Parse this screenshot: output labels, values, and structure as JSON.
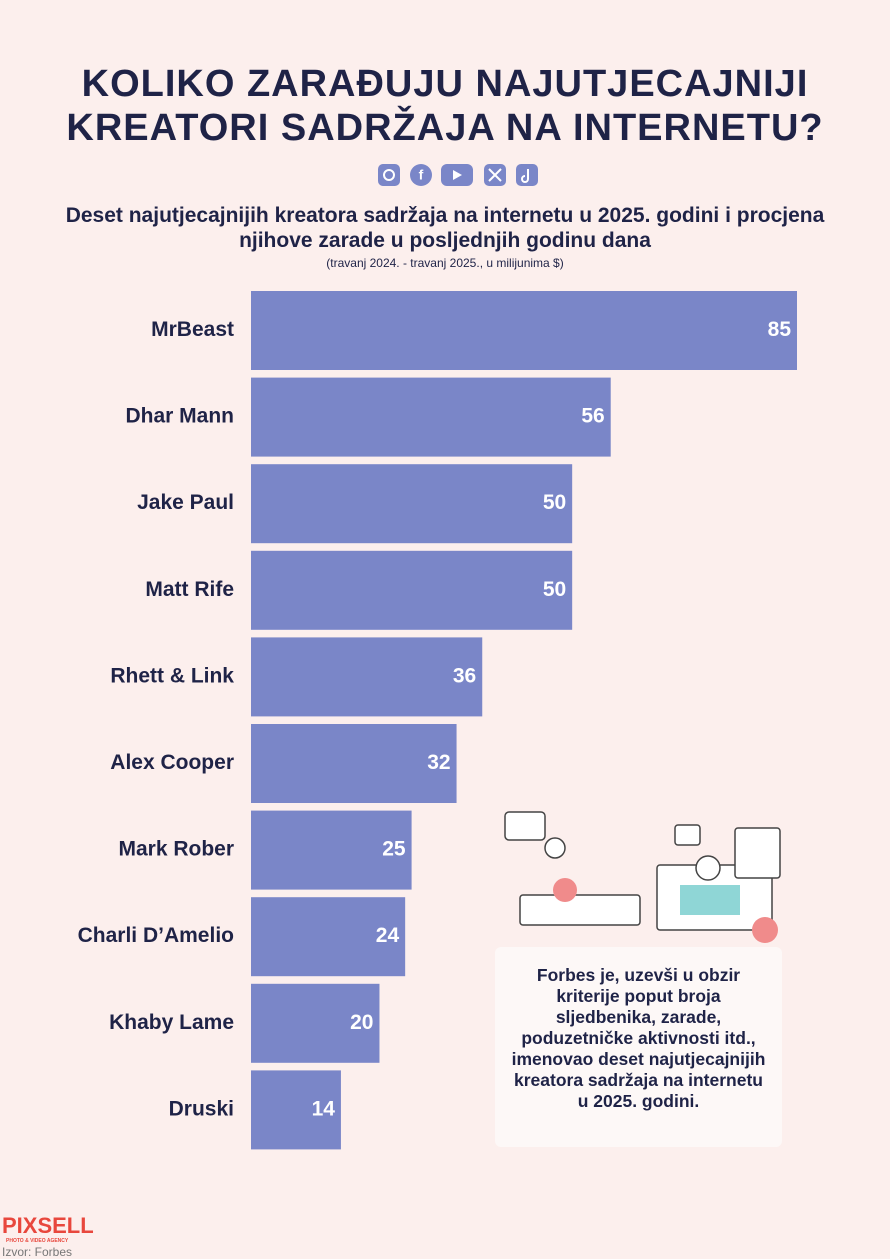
{
  "chart_data": {
    "type": "bar",
    "title": "KOLIKO ZARAĐUJU NAJUTJECAJNIJI KREATORI SADRŽAJA NA INTERNETU?",
    "subtitle": "Deset najutjecajnijih kreatora sadržaja na internetu u 2025. godini i procjena njihove zarade u posljednjih godinu dana",
    "note": "(travanj 2024. - travanj 2025., u milijunima $)",
    "categories": [
      "MrBeast",
      "Dhar Mann",
      "Jake Paul",
      "Matt Rife",
      "Rhett & Link",
      "Alex Cooper",
      "Mark Rober",
      "Charli D’Amelio",
      "Khaby Lame",
      "Druski"
    ],
    "values": [
      85,
      56,
      50,
      50,
      36,
      32,
      25,
      24,
      20,
      14
    ],
    "color": "#7a86c8",
    "annotation": "Forbes je, uzevši u obzir kriterije poput broja sljedbenika, zarade, poduzetničke aktivnosti itd., imenovao deset najutjecajnijih kreatora sadržaja na internetu u 2025. godini."
  },
  "footer": {
    "logo": "PIXSELL",
    "logo_tagline": "PHOTO & VIDEO AGENCY",
    "source": "Izvor: Forbes"
  }
}
